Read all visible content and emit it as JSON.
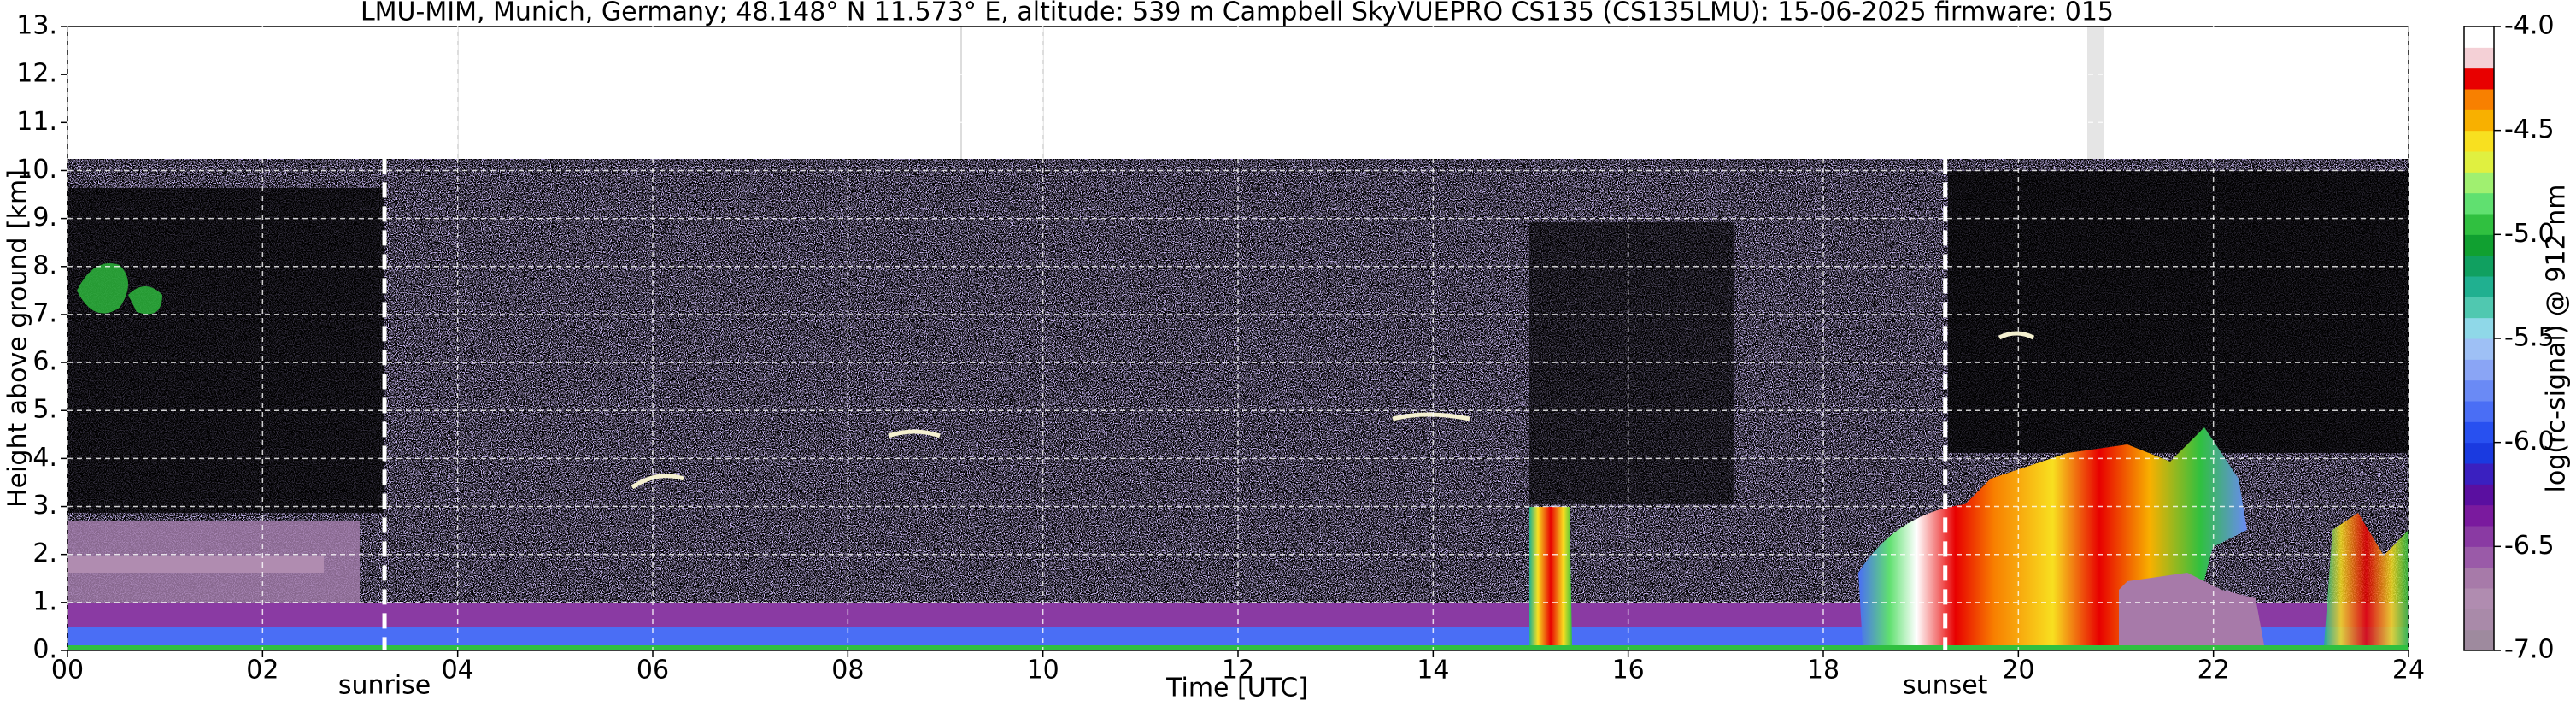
{
  "chart_data": {
    "type": "heatmap",
    "title": "LMU-MIM, Munich, Germany; 48.148° N 11.573° E, altitude: 539 m    Campbell SkyVUEPRO CS135 (CS135LMU): 15-06-2025    firmware: 015",
    "x_label": "Time [UTC]",
    "y_label": "Height above ground [km]",
    "colorbar_label": "log(rc-signal) @ 912 nm",
    "xlim": [
      0,
      24
    ],
    "xticks": [
      {
        "value": 0,
        "label": "00"
      },
      {
        "value": 2,
        "label": "02"
      },
      {
        "value": 4,
        "label": "04"
      },
      {
        "value": 6,
        "label": "06"
      },
      {
        "value": 8,
        "label": "08"
      },
      {
        "value": 10,
        "label": "10"
      },
      {
        "value": 12,
        "label": "12"
      },
      {
        "value": 14,
        "label": "14"
      },
      {
        "value": 16,
        "label": "16"
      },
      {
        "value": 18,
        "label": "18"
      },
      {
        "value": 20,
        "label": "20"
      },
      {
        "value": 22,
        "label": "22"
      },
      {
        "value": 24,
        "label": "24"
      }
    ],
    "ylim": [
      0,
      13
    ],
    "yticks": [
      {
        "value": 0,
        "label": "0."
      },
      {
        "value": 1,
        "label": "1."
      },
      {
        "value": 2,
        "label": "2."
      },
      {
        "value": 3,
        "label": "3."
      },
      {
        "value": 4,
        "label": "4."
      },
      {
        "value": 5,
        "label": "5."
      },
      {
        "value": 6,
        "label": "6."
      },
      {
        "value": 7,
        "label": "7."
      },
      {
        "value": 8,
        "label": "8."
      },
      {
        "value": 9,
        "label": "9."
      },
      {
        "value": 10,
        "label": "10."
      },
      {
        "value": 11,
        "label": "11."
      },
      {
        "value": 12,
        "label": "12."
      },
      {
        "value": 13,
        "label": "13."
      }
    ],
    "clim": [
      -7,
      -4
    ],
    "cticks": [
      {
        "value": -4,
        "label": "-4.0"
      },
      {
        "value": -4.5,
        "label": "-4.5"
      },
      {
        "value": -5,
        "label": "-5.0"
      },
      {
        "value": -5.5,
        "label": "-5.5"
      },
      {
        "value": -6,
        "label": "-6.0"
      },
      {
        "value": -6.5,
        "label": "-6.5"
      },
      {
        "value": -7,
        "label": "-7.0"
      }
    ],
    "colormap": [
      "#9e8a9e",
      "#a98aa9",
      "#b08cb0",
      "#a77aa9",
      "#9a5aa8",
      "#8a3aa3",
      "#7a1a9e",
      "#5a0fa0",
      "#3a20c0",
      "#1a3ae0",
      "#2850f0",
      "#4a6ef5",
      "#6a8af5",
      "#8aa5f5",
      "#9ec0f5",
      "#8fd8e8",
      "#50c8b0",
      "#20b090",
      "#10a060",
      "#10a030",
      "#30c040",
      "#60e070",
      "#a0f070",
      "#e0f040",
      "#f8e020",
      "#f8b000",
      "#f88000",
      "#e80000",
      "#f4d0d6",
      "#ffffff"
    ],
    "grid": true,
    "annotations": [
      {
        "text": "sunrise",
        "x": 3.25
      },
      {
        "text": "sunset",
        "x": 19.25
      }
    ]
  }
}
